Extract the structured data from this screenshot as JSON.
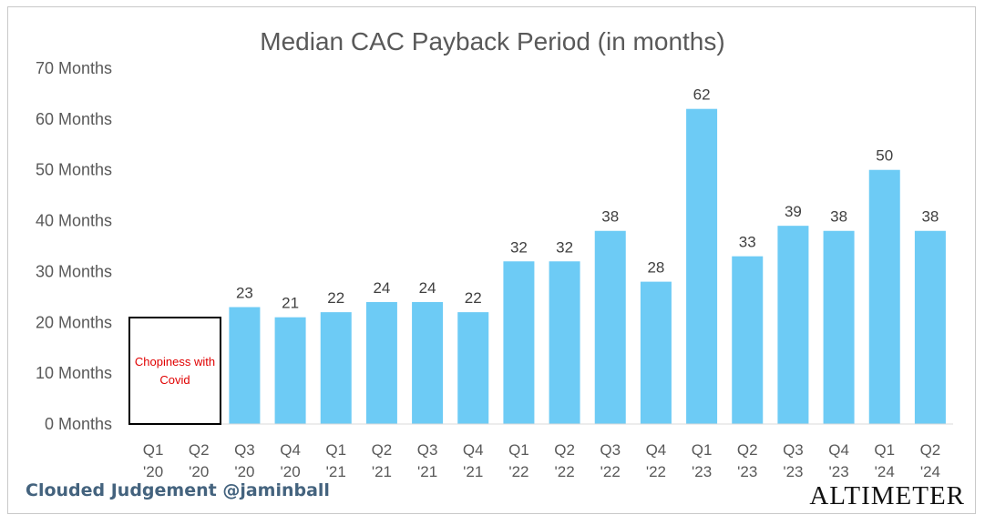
{
  "chart_data": {
    "type": "bar",
    "title": "Median CAC Payback Period (in months)",
    "xlabel": "",
    "ylabel": "",
    "ylim": [
      0,
      70
    ],
    "yticks": [
      "0 Months",
      "10 Months",
      "20 Months",
      "30 Months",
      "40 Months",
      "50 Months",
      "60 Months",
      "70 Months"
    ],
    "categories": [
      [
        "Q1",
        "'20"
      ],
      [
        "Q2",
        "'20"
      ],
      [
        "Q3",
        "'20"
      ],
      [
        "Q4",
        "'20"
      ],
      [
        "Q1",
        "'21"
      ],
      [
        "Q2",
        "'21"
      ],
      [
        "Q3",
        "'21"
      ],
      [
        "Q4",
        "'21"
      ],
      [
        "Q1",
        "'22"
      ],
      [
        "Q2",
        "'22"
      ],
      [
        "Q3",
        "'22"
      ],
      [
        "Q4",
        "'22"
      ],
      [
        "Q1",
        "'23"
      ],
      [
        "Q2",
        "'23"
      ],
      [
        "Q3",
        "'23"
      ],
      [
        "Q4",
        "'23"
      ],
      [
        "Q1",
        "'24"
      ],
      [
        "Q2",
        "'24"
      ]
    ],
    "values": [
      null,
      null,
      23,
      21,
      22,
      24,
      24,
      22,
      32,
      32,
      38,
      28,
      62,
      33,
      39,
      38,
      50,
      38
    ],
    "bar_color": "#6dcbf5",
    "grid": false,
    "legend": "none",
    "annotation": "Chopiness with Covid"
  },
  "footer": {
    "watermark": "Clouded Judgement @jaminball",
    "brand": "ALTIMETER"
  }
}
